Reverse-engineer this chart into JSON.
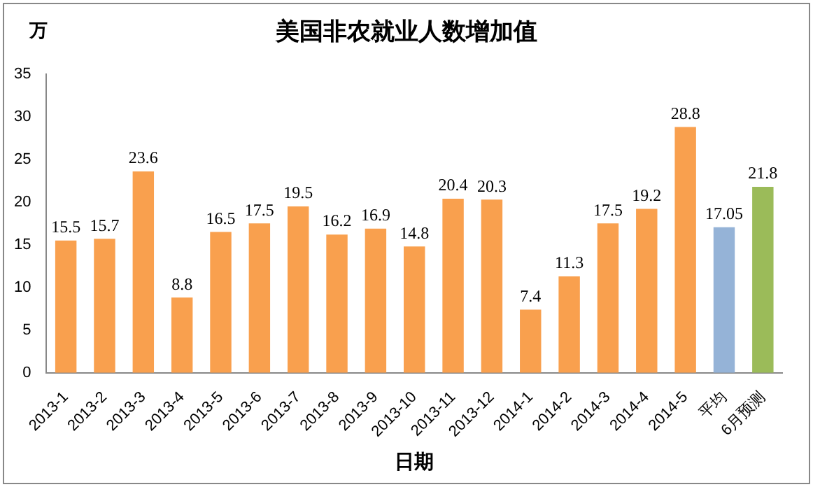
{
  "chart_data": {
    "type": "bar",
    "title": "美国非农就业人数增加值",
    "xlabel": "日期",
    "ylabel": "万",
    "categories": [
      "2013-1",
      "2013-2",
      "2013-3",
      "2013-4",
      "2013-5",
      "2013-6",
      "2013-7",
      "2013-8",
      "2013-9",
      "2013-10",
      "2013-11",
      "2013-12",
      "2014-1",
      "2014-2",
      "2014-3",
      "2014-4",
      "2014-5",
      "平均",
      "6月预测"
    ],
    "values": [
      15.5,
      15.7,
      23.6,
      8.8,
      16.5,
      17.5,
      19.5,
      16.2,
      16.9,
      14.8,
      20.4,
      20.3,
      7.4,
      11.3,
      17.5,
      19.2,
      28.8,
      17.05,
      21.8
    ],
    "colors": [
      "#f9a04e",
      "#f9a04e",
      "#f9a04e",
      "#f9a04e",
      "#f9a04e",
      "#f9a04e",
      "#f9a04e",
      "#f9a04e",
      "#f9a04e",
      "#f9a04e",
      "#f9a04e",
      "#f9a04e",
      "#f9a04e",
      "#f9a04e",
      "#f9a04e",
      "#f9a04e",
      "#f9a04e",
      "#95b3d7",
      "#9bbb59"
    ],
    "ylim": [
      0,
      35
    ],
    "yticks": [
      0,
      5,
      10,
      15,
      20,
      25,
      30,
      35
    ],
    "grid": false,
    "legend": false,
    "data_labels": true
  }
}
